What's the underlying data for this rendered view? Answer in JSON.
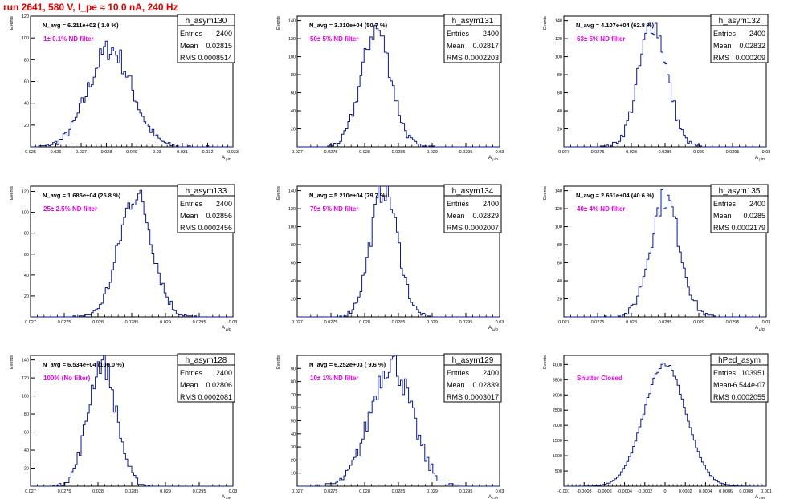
{
  "page": {
    "title": "run 2641,   580 V, I_pe ≈ 10.0 nA, 240 Hz"
  },
  "common": {
    "ylabel": "Events",
    "xlabel": "A",
    "xlabel_sub": "μ/D",
    "stats_labels": [
      "Entries",
      "Mean",
      "RMS"
    ],
    "colors": {
      "hist": "#0a1a8c",
      "annotation": "#e000e0",
      "title": "#e00000",
      "frame": "#000000"
    }
  },
  "chart_data": [
    {
      "type": "histogram",
      "name": "h_asym130",
      "navg": "N_avg = 6.211e+02 ( 1.0 %)",
      "annotation": "1± 0.1% ND filter",
      "entries": "2400",
      "mean_str": "0.02815",
      "rms_str": "0.0008514",
      "mean": 0.02815,
      "rms": 0.0008514,
      "n": 2400,
      "ymax": 120,
      "xlim": [
        0.025,
        0.033
      ],
      "xticks": [
        "0.025",
        "0.026",
        "0.027",
        "0.028",
        "0.029",
        "0.03",
        "0.031",
        "0.032",
        "0.033"
      ],
      "yticks": [
        20,
        40,
        60,
        80,
        100,
        120
      ]
    },
    {
      "type": "histogram",
      "name": "h_asym131",
      "navg": "N_avg = 3.310e+04 (50.7 %)",
      "annotation": "50± 5% ND filter",
      "entries": "2400",
      "mean_str": "0.02817",
      "rms_str": "0.0002203",
      "mean": 0.02817,
      "rms": 0.0002203,
      "n": 2400,
      "ymax": 145,
      "xlim": [
        0.027,
        0.03
      ],
      "xticks": [
        "0.027",
        "0.0275",
        "0.028",
        "0.0285",
        "0.029",
        "0.0295",
        "0.03"
      ],
      "yticks": [
        20,
        40,
        60,
        80,
        100,
        120,
        140
      ]
    },
    {
      "type": "histogram",
      "name": "h_asym132",
      "navg": "N_avg = 4.107e+04 (62.8 %)",
      "annotation": "63± 5% ND filter",
      "entries": "2400",
      "mean_str": "0.02832",
      "rms_str": "0.000209",
      "mean": 0.02832,
      "rms": 0.000209,
      "n": 2400,
      "ymax": 145,
      "xlim": [
        0.027,
        0.03
      ],
      "xticks": [
        "0.027",
        "0.0275",
        "0.028",
        "0.0285",
        "0.029",
        "0.0295",
        "0.03"
      ],
      "yticks": [
        20,
        40,
        60,
        80,
        100,
        120,
        140
      ]
    },
    {
      "type": "histogram",
      "name": "h_asym133",
      "navg": "N_avg = 1.685e+04 (25.8 %)",
      "annotation": "25± 2.5% ND filter",
      "entries": "2400",
      "mean_str": "0.02856",
      "rms_str": "0.0002456",
      "mean": 0.02856,
      "rms": 0.0002456,
      "n": 2400,
      "ymax": 125,
      "xlim": [
        0.027,
        0.03
      ],
      "xticks": [
        "0.027",
        "0.0275",
        "0.028",
        "0.0285",
        "0.029",
        "0.0295",
        "0.03"
      ],
      "yticks": [
        20,
        40,
        60,
        80,
        100,
        120
      ]
    },
    {
      "type": "histogram",
      "name": "h_asym134",
      "navg": "N_avg = 5.210e+04 (79.7 %)",
      "annotation": "79± 5% ND filter",
      "entries": "2400",
      "mean_str": "0.02829",
      "rms_str": "0.0002007",
      "mean": 0.02829,
      "rms": 0.0002007,
      "n": 2400,
      "ymax": 145,
      "xlim": [
        0.027,
        0.03
      ],
      "xticks": [
        "0.027",
        "0.0275",
        "0.028",
        "0.0285",
        "0.029",
        "0.0295",
        "0.03"
      ],
      "yticks": [
        20,
        40,
        60,
        80,
        100,
        120,
        140
      ]
    },
    {
      "type": "histogram",
      "name": "h_asym135",
      "navg": "N_avg = 2.651e+04 (40.6 %)",
      "annotation": "40± 4% ND filter",
      "entries": "2400",
      "mean_str": "0.0285",
      "rms_str": "0.0002179",
      "mean": 0.0285,
      "rms": 0.0002179,
      "n": 2400,
      "ymax": 145,
      "xlim": [
        0.027,
        0.03
      ],
      "xticks": [
        "0.027",
        "0.0275",
        "0.028",
        "0.0285",
        "0.029",
        "0.0295",
        "0.03"
      ],
      "yticks": [
        20,
        40,
        60,
        80,
        100,
        120,
        140
      ]
    },
    {
      "type": "histogram",
      "name": "h_asym128",
      "navg": "N_avg = 6.534e+04 (100.0 %)",
      "annotation": "100% (No filter)",
      "entries": "2400",
      "mean_str": "0.02806",
      "rms_str": "0.0002081",
      "mean": 0.02806,
      "rms": 0.0002081,
      "n": 2400,
      "ymax": 145,
      "xlim": [
        0.027,
        0.03
      ],
      "xticks": [
        "0.027",
        "0.0275",
        "0.028",
        "0.0285",
        "0.029",
        "0.0295",
        "0.03"
      ],
      "yticks": [
        20,
        40,
        60,
        80,
        100,
        120,
        140
      ]
    },
    {
      "type": "histogram",
      "name": "h_asym129",
      "navg": "N_avg = 6.252e+03 ( 9.6 %)",
      "annotation": "10± 1% ND filter",
      "entries": "2400",
      "mean_str": "0.02839",
      "rms_str": "0.0003017",
      "mean": 0.02839,
      "rms": 0.0003017,
      "n": 2400,
      "ymax": 100,
      "xlim": [
        0.027,
        0.03
      ],
      "xticks": [
        "0.027",
        "0.0275",
        "0.028",
        "0.0285",
        "0.029",
        "0.0295",
        "0.03"
      ],
      "yticks": [
        10,
        20,
        30,
        40,
        50,
        60,
        70,
        80,
        90
      ]
    },
    {
      "type": "histogram",
      "name": "hPed_asym",
      "navg": "",
      "annotation": "Shutter Closed",
      "entries": "103951",
      "mean_str": "-6.544e-07",
      "rms_str": "0.0002055",
      "mean": -6.544e-07,
      "rms": 0.0002055,
      "n": 103951,
      "ymax": 4300,
      "xlim": [
        -0.001,
        0.001
      ],
      "xticks": [
        "-0.001",
        "-0.0008",
        "-0.0006",
        "-0.0004",
        "-0.0002",
        "0",
        "0.0002",
        "0.0004",
        "0.0006",
        "0.0008",
        "0.001"
      ],
      "yticks": [
        500,
        1000,
        1500,
        2000,
        2500,
        3000,
        3500,
        4000
      ]
    }
  ]
}
